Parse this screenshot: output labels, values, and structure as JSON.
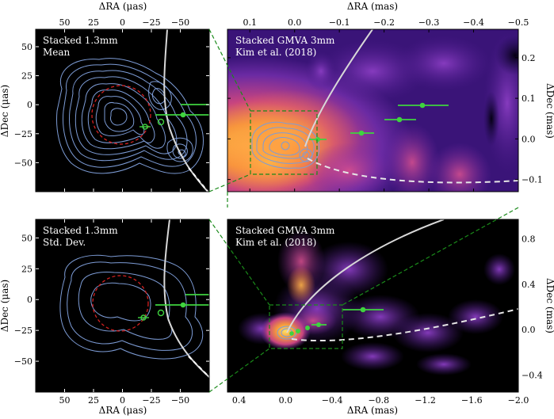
{
  "chart_data": [
    {
      "type": "contour",
      "panel": "top-left",
      "label_line1": "Stacked 1.3mm",
      "label_line2": "Mean",
      "xlabel": "ΔRA (μas)",
      "ylabel": "ΔDec (μas)",
      "xlim": [
        75,
        -75
      ],
      "ylim": [
        -75,
        65
      ],
      "xticks": [
        "50",
        "25",
        "0",
        "−25",
        "−50"
      ],
      "xtick_values": [
        50,
        25,
        0,
        -25,
        -50
      ],
      "yticks": [
        "50",
        "25",
        "0",
        "−25",
        "−50"
      ],
      "ytick_values": [
        50,
        25,
        0,
        -25,
        -50
      ]
    },
    {
      "type": "heatmap",
      "panel": "top-right",
      "label_line1": "Stacked GMVA 3mm",
      "label_line2": "Kim et al. (2018)",
      "xlabel": "ΔRA (mas)",
      "ylabel": "ΔDec (mas)",
      "xlim": [
        0.15,
        -0.5
      ],
      "ylim": [
        -0.13,
        0.27
      ],
      "xticks": [
        "0.1",
        "0.0",
        "−0.1",
        "−0.2",
        "−0.3",
        "−0.4",
        "−0.5"
      ],
      "xtick_values": [
        0.1,
        0.0,
        -0.1,
        -0.2,
        -0.3,
        -0.4,
        -0.5
      ],
      "yticks": [
        "0.2",
        "0.1",
        "0.0",
        "−0.1"
      ],
      "ytick_values": [
        0.2,
        0.1,
        0.0,
        -0.1
      ]
    },
    {
      "type": "contour",
      "panel": "bottom-left",
      "label_line1": "Stacked 1.3mm",
      "label_line2": "Std. Dev.",
      "xlabel": "ΔRA (μas)",
      "ylabel": "ΔDec (μas)",
      "xlim": [
        75,
        -75
      ],
      "ylim": [
        -75,
        65
      ],
      "xticks": [
        "50",
        "25",
        "0",
        "−25",
        "−50"
      ],
      "xtick_values": [
        50,
        25,
        0,
        -25,
        -50
      ],
      "yticks": [
        "50",
        "25",
        "0",
        "−25",
        "−50"
      ],
      "ytick_values": [
        50,
        25,
        0,
        -25,
        -50
      ]
    },
    {
      "type": "heatmap",
      "panel": "bottom-right",
      "label_line1": "Stacked GMVA 3mm",
      "label_line2": "Kim et al. (2018)",
      "xlabel": "ΔRA (mas)",
      "ylabel": "ΔDec (mas)",
      "xlim": [
        0.5,
        -2.0
      ],
      "ylim": [
        -0.55,
        0.97
      ],
      "xticks": [
        "0.4",
        "0.0",
        "−0.4",
        "−0.8",
        "−1.2",
        "−1.6",
        "−2.0"
      ],
      "xtick_values": [
        0.4,
        0.0,
        -0.4,
        -0.8,
        -1.2,
        -1.6,
        -2.0
      ],
      "yticks": [
        "0.8",
        "0.4",
        "0.0",
        "−0.4"
      ],
      "ytick_values": [
        0.8,
        0.4,
        0.0,
        -0.4
      ]
    }
  ],
  "colors": {
    "contour": "#7d9cd6",
    "ring": "#d42020",
    "jet_line": "#d8d8d8",
    "green": "#3fd33f",
    "frame_box": "#1a8a1a"
  }
}
